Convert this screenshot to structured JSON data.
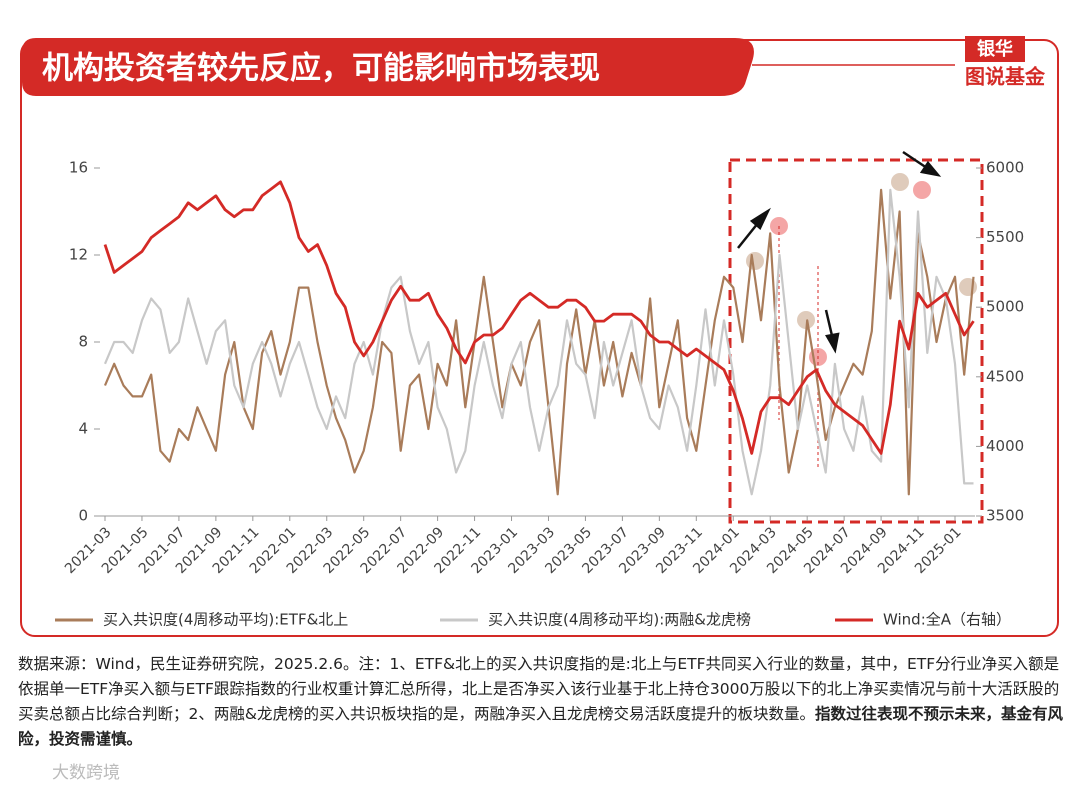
{
  "header": {
    "title": "机构投资者较先反应，可能影响市场表现"
  },
  "logo": {
    "line1": "银华",
    "line2": "图说基金"
  },
  "chart_data": {
    "type": "line",
    "categories": [
      "2021-03",
      null,
      null,
      null,
      "2021-05",
      null,
      null,
      null,
      "2021-07",
      null,
      null,
      null,
      "2021-09",
      null,
      null,
      null,
      "2021-11",
      null,
      null,
      null,
      "2022-01",
      null,
      null,
      null,
      "2022-03",
      null,
      null,
      null,
      "2022-05",
      null,
      null,
      null,
      "2022-07",
      null,
      null,
      null,
      "2022-09",
      null,
      null,
      null,
      "2022-11",
      null,
      null,
      null,
      "2023-01",
      null,
      null,
      null,
      "2023-03",
      null,
      null,
      null,
      "2023-05",
      null,
      null,
      null,
      "2023-07",
      null,
      null,
      null,
      "2023-09",
      null,
      null,
      null,
      "2023-11",
      null,
      null,
      null,
      "2024-01",
      null,
      null,
      null,
      "2024-03",
      null,
      null,
      null,
      "2024-05",
      null,
      null,
      null,
      "2024-07",
      null,
      null,
      null,
      "2024-09",
      null,
      null,
      null,
      "2024-11",
      null,
      null,
      null,
      "2025-01",
      null,
      null
    ],
    "series": [
      {
        "name": "买入共识度(4周移动平均):ETF&北上",
        "color": "#a97c5a",
        "values": [
          6,
          7,
          6,
          5.5,
          5.5,
          6.5,
          3,
          2.5,
          4,
          3.5,
          5,
          4,
          3,
          6.5,
          8,
          5,
          4,
          7.5,
          8.5,
          6.5,
          8,
          10.5,
          10.5,
          8,
          6,
          4.5,
          3.5,
          2,
          3,
          5,
          8,
          7.5,
          3,
          6,
          6.5,
          4,
          7,
          6,
          9,
          5,
          8,
          11,
          8,
          5,
          7,
          6,
          8,
          9,
          5,
          1,
          7,
          9.5,
          6.5,
          9,
          6,
          8,
          5.5,
          7.5,
          6,
          10,
          5,
          7,
          9,
          4.5,
          3,
          6,
          9,
          11,
          10.5,
          8,
          12,
          9,
          13,
          6,
          2,
          4,
          9,
          6.5,
          3.5,
          5,
          6,
          7,
          6.5,
          8.5,
          15,
          10,
          14,
          1,
          13,
          11,
          8,
          10,
          11,
          6.5,
          11
        ]
      },
      {
        "name": "买入共识度(4周移动平均):两融&龙虎榜",
        "color": "#c8c8c8",
        "values": [
          7,
          8,
          8,
          7.5,
          9,
          10,
          9.5,
          7.5,
          8,
          10,
          8.5,
          7,
          8.5,
          9,
          6,
          5,
          7,
          8,
          7,
          5.5,
          7,
          8,
          6.5,
          5,
          4,
          5.5,
          4.5,
          7,
          8,
          6.5,
          9,
          10.5,
          11,
          8.5,
          7,
          8,
          5,
          4,
          2,
          3,
          6,
          8,
          6,
          4.5,
          7,
          8,
          5,
          3,
          5,
          6,
          9,
          7,
          6.5,
          4.5,
          8,
          6,
          7.5,
          9,
          6,
          4.5,
          4,
          6,
          5,
          3,
          6,
          9.5,
          6,
          9,
          6.5,
          3,
          1,
          3,
          6,
          12,
          8,
          4,
          6,
          4,
          2,
          7,
          4,
          3,
          5.5,
          3,
          2.5,
          15,
          11,
          5,
          14,
          7.5,
          11,
          10,
          7,
          1.5,
          1.5
        ]
      },
      {
        "name": "Wind:全A（右轴）",
        "color": "#d42a26",
        "axis": "y2",
        "values": [
          5450,
          5250,
          5300,
          5350,
          5400,
          5500,
          5550,
          5600,
          5650,
          5750,
          5700,
          5750,
          5800,
          5700,
          5650,
          5700,
          5700,
          5800,
          5850,
          5900,
          5750,
          5500,
          5400,
          5450,
          5300,
          5100,
          5000,
          4750,
          4650,
          4750,
          4900,
          5050,
          5150,
          5050,
          5050,
          5100,
          4950,
          4850,
          4700,
          4600,
          4750,
          4800,
          4800,
          4850,
          4950,
          5050,
          5100,
          5050,
          5000,
          5000,
          5050,
          5050,
          5000,
          4900,
          4900,
          4950,
          4950,
          4950,
          4900,
          4800,
          4750,
          4750,
          4700,
          4650,
          4700,
          4650,
          4600,
          4550,
          4400,
          4200,
          3950,
          4250,
          4350,
          4350,
          4300,
          4400,
          4500,
          4550,
          4400,
          4300,
          4250,
          4200,
          4150,
          4050,
          3950,
          4300,
          4900,
          4700,
          5100,
          5000,
          5050,
          5100,
          4950,
          4800,
          4900
        ]
      }
    ],
    "ylim": [
      0,
      16
    ],
    "yticks": [
      0,
      4,
      8,
      12,
      16
    ],
    "y2lim": [
      3500,
      6000
    ],
    "y2ticks": [
      3500,
      4000,
      4500,
      5000,
      5500,
      6000
    ],
    "legend": "bottom"
  },
  "notes": {
    "text": "数据来源：Wind，民生证券研究院，2025.2.6。注：1、ETF&北上的买入共识度指的是:北上与ETF共同买入行业的数量，其中，ETF分行业净买入额是依据单一ETF净买入额与ETF跟踪指数的行业权重计算汇总所得，北上是否净买入该行业基于北上持仓3000万股以下的北上净买卖情况与前十大活跃股的买卖总额占比综合判断；2、两融&龙虎榜的买入共识板块指的是，两融净买入且龙虎榜交易活跃度提升的板块数量。",
    "emphasis": "指数过往表现不预示未来，基金有风险，投资需谨慎。"
  },
  "watermark": "大数跨境"
}
